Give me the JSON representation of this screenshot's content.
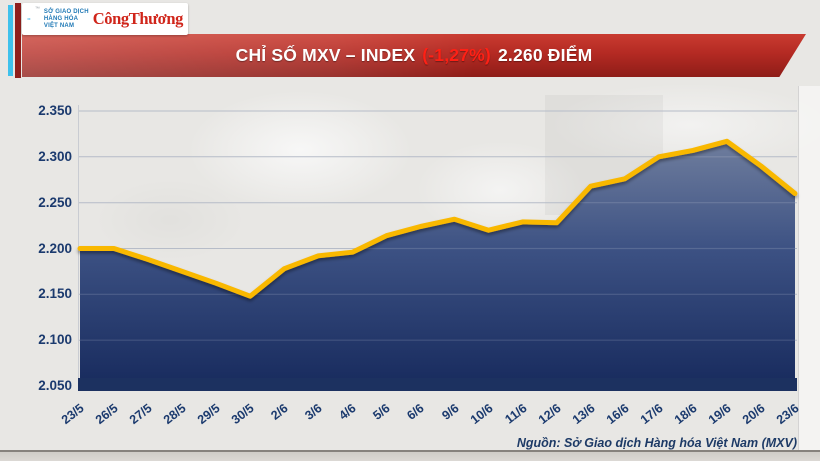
{
  "header": {
    "logo": {
      "org_lines": [
        "SỞ GIAO DỊCH",
        "HÀNG HÓA",
        "VIỆT NAM"
      ],
      "tm": "™",
      "brand": "CôngThương"
    },
    "banner": {
      "title_prefix": "CHỈ SỐ MXV – INDEX",
      "change": "(-1,27%)",
      "title_suffix": "2.260 ĐIỂM",
      "banner_color": "#b42a23",
      "change_color": "#ff2015"
    }
  },
  "chart_data": {
    "type": "area",
    "title": "CHỈ SỐ MXV – INDEX (-1,27%) 2.260 ĐIỂM",
    "x": [
      "23/5",
      "26/5",
      "27/5",
      "28/5",
      "29/5",
      "30/5",
      "2/6",
      "3/6",
      "4/6",
      "5/6",
      "6/6",
      "9/6",
      "10/6",
      "11/6",
      "12/6",
      "13/6",
      "16/6",
      "17/6",
      "18/6",
      "19/6",
      "20/6",
      "23/6"
    ],
    "series": [
      {
        "name": "MXV-Index",
        "values": [
          2200,
          2200,
          2188,
          2175,
          2162,
          2148,
          2178,
          2192,
          2196,
          2214,
          2224,
          2232,
          2220,
          2229,
          2228,
          2268,
          2276,
          2300,
          2307,
          2317,
          2290,
          2260
        ]
      }
    ],
    "ylim": [
      2050,
      2350
    ],
    "yticks": [
      2050,
      2100,
      2150,
      2200,
      2250,
      2300,
      2350
    ],
    "ytick_labels": [
      "2.050",
      "2.100",
      "2.150",
      "2.200",
      "2.250",
      "2.300",
      "2.350"
    ],
    "grid": true,
    "legend": "none",
    "line_color": "#f9b800",
    "area_top_color": "#72809f",
    "area_mid_color": "#3c5183",
    "area_bottom_color": "#16295c",
    "baseline_bar_color": "#1c3160",
    "gridline_color": "#b6bcc8",
    "axis_label_color": "#1b3a6e"
  },
  "footer": {
    "source": "Nguồn: Sở Giao dịch Hàng hóa Việt Nam (MXV)"
  }
}
